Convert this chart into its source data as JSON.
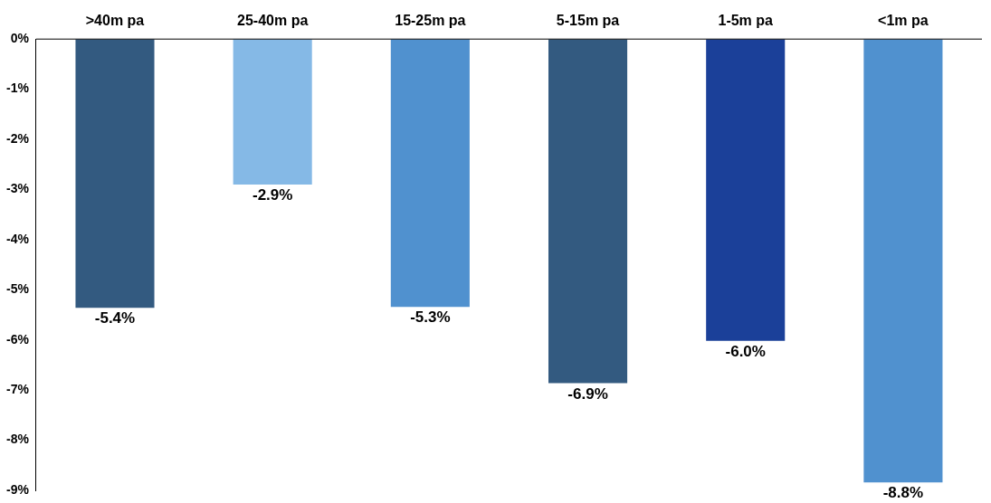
{
  "chart_data": {
    "type": "bar",
    "categories": [
      ">40m pa",
      "25-40m pa",
      "15-25m pa",
      "5-15m pa",
      "1-5m pa",
      "<1m pa"
    ],
    "values": [
      -5.36,
      -2.9,
      -5.34,
      -6.86,
      -6.02,
      -8.84
    ],
    "colors": [
      "#335a80",
      "#85b9e6",
      "#5091cf",
      "#335a80",
      "#1b4099",
      "#5091cf"
    ],
    "value_labels": [
      "-5.4%",
      "-2.9%",
      "-5.3%",
      "-6.9%",
      "-6.0%",
      "-8.8%"
    ],
    "ylim": [
      -9,
      0
    ],
    "yticks": [
      {
        "value": 0,
        "label": "0%"
      },
      {
        "value": -1,
        "label": "-1%"
      },
      {
        "value": -2,
        "label": "-2%"
      },
      {
        "value": -3,
        "label": "-3%"
      },
      {
        "value": -4,
        "label": "-4%"
      },
      {
        "value": -5,
        "label": "-5%"
      },
      {
        "value": -6,
        "label": "-6%"
      },
      {
        "value": -7,
        "label": "-7%"
      },
      {
        "value": -8,
        "label": "-8%"
      },
      {
        "value": -9,
        "label": "-9%"
      }
    ],
    "grid": false,
    "legend": false
  }
}
